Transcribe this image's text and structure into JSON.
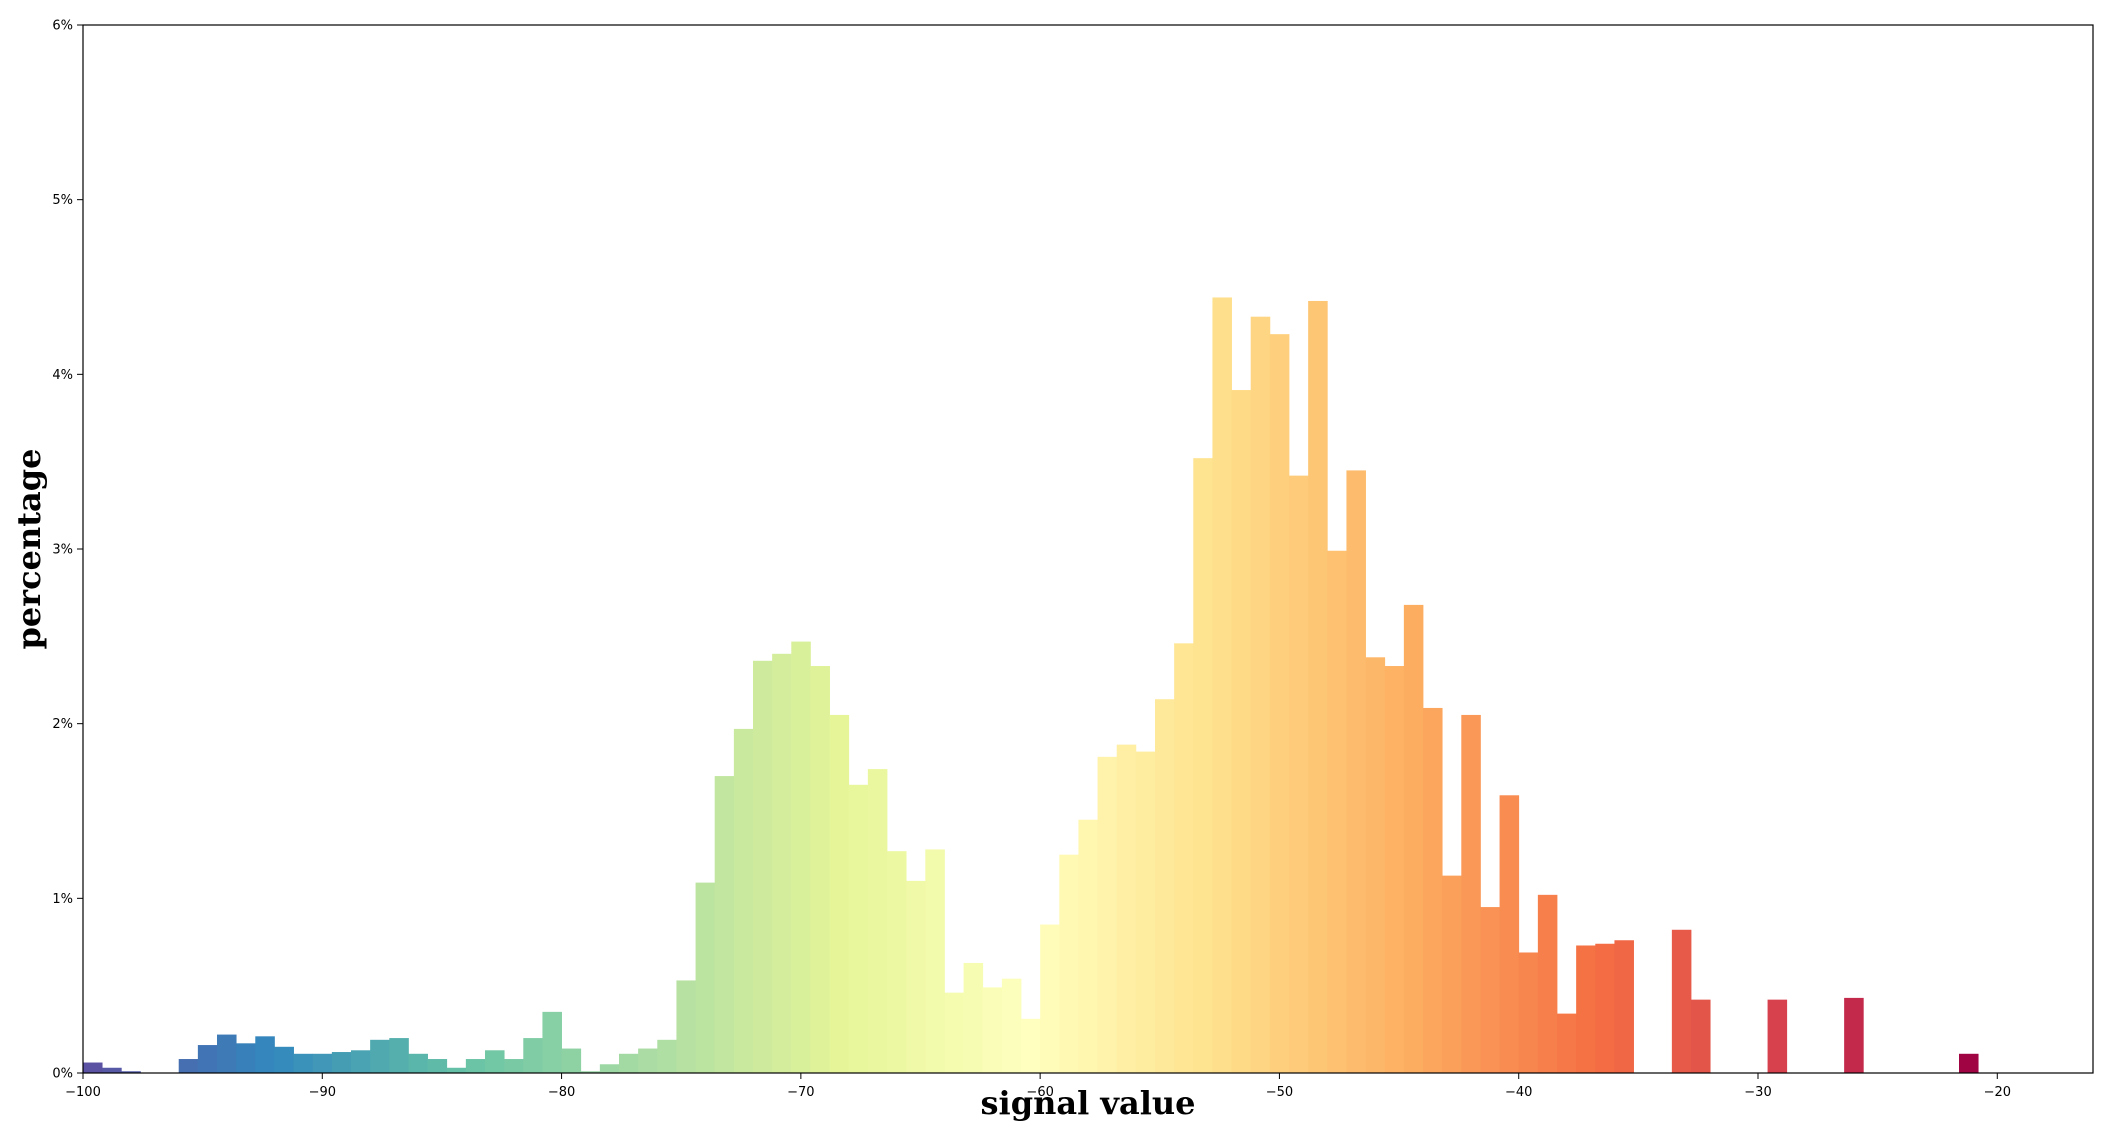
{
  "chart_data": {
    "type": "bar",
    "title": "",
    "xlabel": "signal value",
    "ylabel": "percentage",
    "xlim": [
      -100,
      -16
    ],
    "ylim": [
      0,
      6
    ],
    "grid": false,
    "colormap": "Spectral_r",
    "x_ticks": [
      {
        "value": -100,
        "label": "−100"
      },
      {
        "value": -90,
        "label": "−90"
      },
      {
        "value": -80,
        "label": "−80"
      },
      {
        "value": -70,
        "label": "−70"
      },
      {
        "value": -60,
        "label": "−60"
      },
      {
        "value": -50,
        "label": "−50"
      },
      {
        "value": -40,
        "label": "−40"
      },
      {
        "value": -30,
        "label": "−30"
      },
      {
        "value": -20,
        "label": "−20"
      }
    ],
    "y_ticks": [
      {
        "value": 0,
        "label": "0%"
      },
      {
        "value": 1,
        "label": "1%"
      },
      {
        "value": 2,
        "label": "2%"
      },
      {
        "value": 3,
        "label": "3%"
      },
      {
        "value": 4,
        "label": "4%"
      },
      {
        "value": 5,
        "label": "5%"
      },
      {
        "value": 6,
        "label": "6%"
      }
    ],
    "bin_width": 0.8,
    "bins": [
      [
        -100.0,
        0.06
      ],
      [
        -99.2,
        0.03
      ],
      [
        -98.4,
        0.01
      ],
      [
        -96.0,
        0.08
      ],
      [
        -95.2,
        0.16
      ],
      [
        -94.4,
        0.22
      ],
      [
        -93.6,
        0.17
      ],
      [
        -92.8,
        0.21
      ],
      [
        -92.0,
        0.15
      ],
      [
        -91.2,
        0.11
      ],
      [
        -90.4,
        0.11
      ],
      [
        -89.6,
        0.12
      ],
      [
        -88.8,
        0.13
      ],
      [
        -88.0,
        0.19
      ],
      [
        -87.2,
        0.2
      ],
      [
        -86.4,
        0.11
      ],
      [
        -85.6,
        0.08
      ],
      [
        -84.8,
        0.03
      ],
      [
        -84.0,
        0.08
      ],
      [
        -83.2,
        0.13
      ],
      [
        -82.4,
        0.08
      ],
      [
        -81.6,
        0.2
      ],
      [
        -80.8,
        0.35
      ],
      [
        -80.0,
        0.14
      ],
      [
        -79.2,
        0.01
      ],
      [
        -78.4,
        0.05
      ],
      [
        -77.6,
        0.11
      ],
      [
        -76.8,
        0.14
      ],
      [
        -76.0,
        0.19
      ],
      [
        -75.2,
        0.53
      ],
      [
        -74.4,
        1.09
      ],
      [
        -73.6,
        1.7
      ],
      [
        -72.8,
        1.97
      ],
      [
        -72.0,
        2.36
      ],
      [
        -71.2,
        2.4
      ],
      [
        -70.4,
        2.47
      ],
      [
        -69.6,
        2.33
      ],
      [
        -68.8,
        2.05
      ],
      [
        -68.0,
        1.65
      ],
      [
        -67.2,
        1.74
      ],
      [
        -66.4,
        1.27
      ],
      [
        -65.6,
        1.1
      ],
      [
        -64.8,
        1.28
      ],
      [
        -64.0,
        0.46
      ],
      [
        -63.2,
        0.63
      ],
      [
        -62.4,
        0.49
      ],
      [
        -61.6,
        0.54
      ],
      [
        -60.8,
        0.31
      ],
      [
        -60.0,
        0.85
      ],
      [
        -59.2,
        1.25
      ],
      [
        -58.4,
        1.45
      ],
      [
        -57.6,
        1.81
      ],
      [
        -56.8,
        1.88
      ],
      [
        -56.0,
        1.84
      ],
      [
        -55.2,
        2.14
      ],
      [
        -54.4,
        2.46
      ],
      [
        -53.6,
        3.52
      ],
      [
        -52.8,
        4.44
      ],
      [
        -52.0,
        3.91
      ],
      [
        -51.2,
        4.33
      ],
      [
        -50.4,
        4.23
      ],
      [
        -49.6,
        3.42
      ],
      [
        -48.8,
        4.42
      ],
      [
        -48.0,
        2.99
      ],
      [
        -47.2,
        3.45
      ],
      [
        -46.4,
        2.38
      ],
      [
        -45.6,
        2.33
      ],
      [
        -44.8,
        2.68
      ],
      [
        -44.0,
        2.09
      ],
      [
        -43.2,
        1.13
      ],
      [
        -42.4,
        2.05
      ],
      [
        -41.6,
        0.95
      ],
      [
        -40.8,
        1.59
      ],
      [
        -40.0,
        0.69
      ],
      [
        -39.2,
        1.02
      ],
      [
        -38.4,
        0.34
      ],
      [
        -37.6,
        0.73
      ],
      [
        -36.8,
        0.74
      ],
      [
        -36.0,
        0.76
      ],
      [
        -33.6,
        0.82
      ],
      [
        -32.8,
        0.42
      ],
      [
        -29.6,
        0.42
      ],
      [
        -26.4,
        0.43
      ],
      [
        -21.6,
        0.11
      ]
    ]
  }
}
